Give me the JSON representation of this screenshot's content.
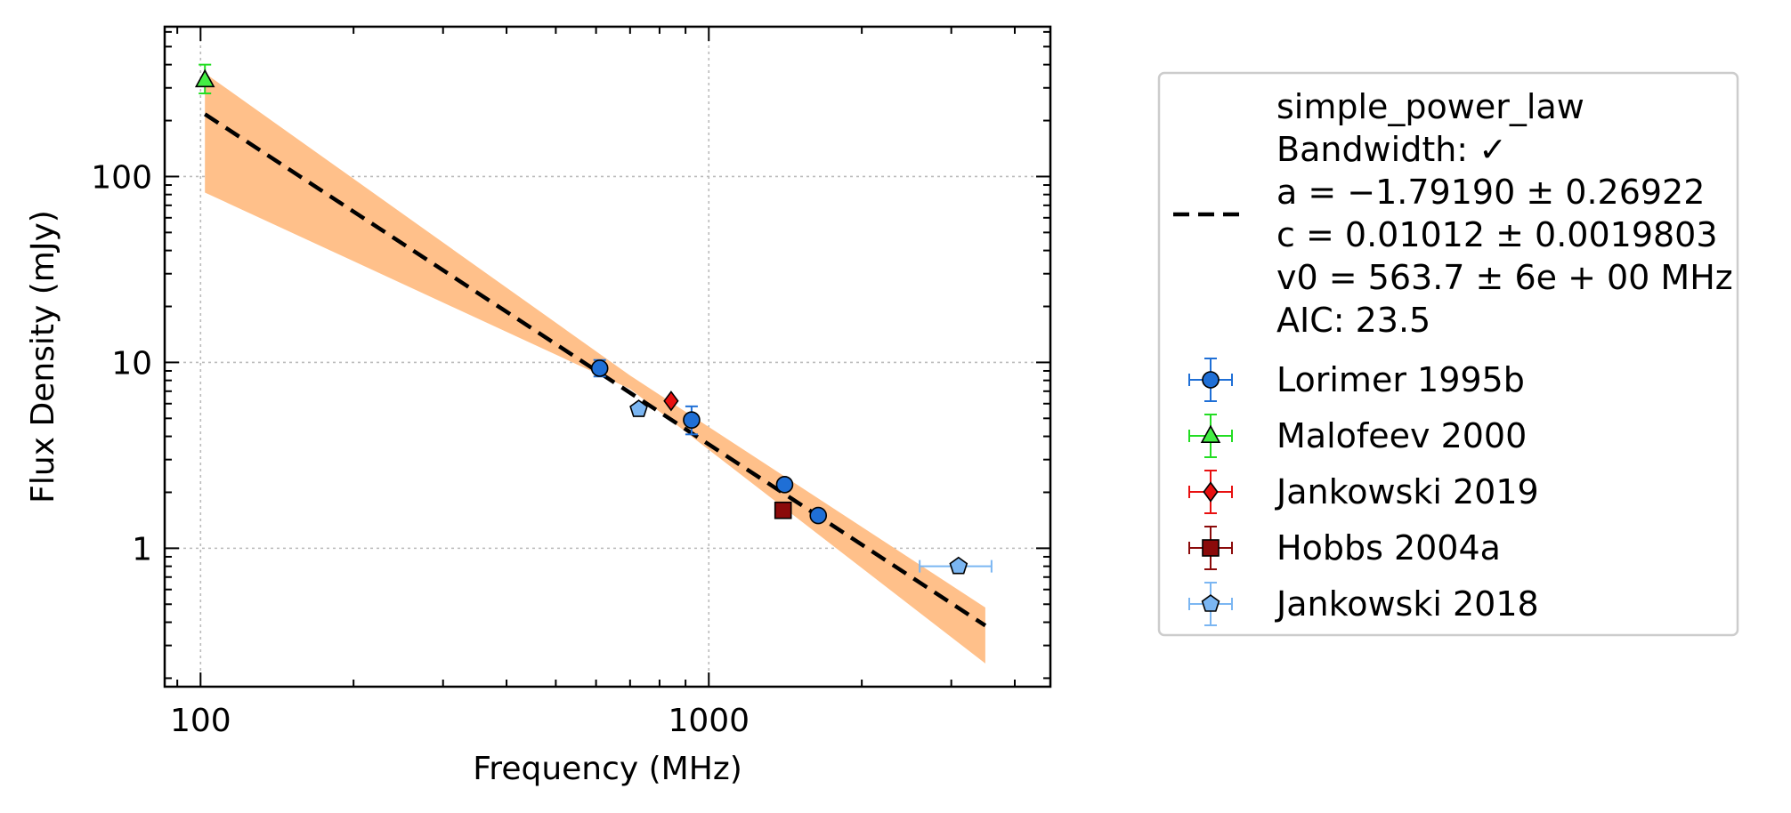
{
  "chart_data": {
    "type": "scatter",
    "xlabel": "Frequency (MHz)",
    "ylabel": "Flux Density (mJy)",
    "xscale": "log",
    "yscale": "log",
    "xlim": [
      85,
      4700
    ],
    "ylim": [
      0.18,
      640
    ],
    "grid": true,
    "legend_position": "right",
    "xticks": [
      {
        "value": 100,
        "label": "100"
      },
      {
        "value": 1000,
        "label": "1000"
      }
    ],
    "yticks": [
      {
        "value": 1,
        "label": "1"
      },
      {
        "value": 10,
        "label": "10"
      },
      {
        "value": 100,
        "label": "100"
      }
    ],
    "fit": {
      "name": "simple_power_law",
      "legend_lines": [
        "simple_power_law",
        "Bandwidth: ✓",
        "a = −1.79190 ± 0.26922",
        "c = 0.01012 ± 0.0019803",
        "v0 = 563.7 ± 6e + 00 MHz",
        "AIC: 23.5"
      ],
      "a": -1.7919,
      "c": 0.01012,
      "v0": 563.7,
      "x_range": [
        102,
        3500
      ],
      "band_upper": [
        [
          102,
          360
        ],
        [
          700,
          8.5
        ],
        [
          3500,
          0.48
        ]
      ],
      "band_lower": [
        [
          102,
          82
        ],
        [
          700,
          7.2
        ],
        [
          3500,
          0.24
        ]
      ],
      "color": "#000000",
      "band_color": "#ffc08a"
    },
    "series": [
      {
        "name": "Lorimer 1995b",
        "marker": "circle",
        "color": "#1f6fd6",
        "err_color": "#1f6fd6",
        "points": [
          {
            "x": 610,
            "y": 9.3,
            "ylo": 8.4,
            "yhi": 10.3
          },
          {
            "x": 925,
            "y": 4.9,
            "ylo": 4.1,
            "yhi": 5.8
          },
          {
            "x": 1410,
            "y": 2.2,
            "ylo": 2.05,
            "yhi": 2.35
          },
          {
            "x": 1642,
            "y": 1.5,
            "ylo": 1.42,
            "yhi": 1.58
          }
        ]
      },
      {
        "name": "Malofeev 2000",
        "marker": "triangle",
        "color": "#44ee44",
        "err_color": "#22dd22",
        "points": [
          {
            "x": 102,
            "y": 330,
            "ylo": 280,
            "yhi": 400
          }
        ]
      },
      {
        "name": "Jankowski 2019",
        "marker": "diamond",
        "color": "#e81010",
        "err_color": "#e81010",
        "points": [
          {
            "x": 843,
            "y": 6.2
          }
        ]
      },
      {
        "name": "Hobbs 2004a",
        "marker": "square",
        "color": "#8b0a0a",
        "err_color": "#8b0a0a",
        "points": [
          {
            "x": 1400,
            "y": 1.6
          }
        ]
      },
      {
        "name": "Jankowski 2018",
        "marker": "pentagon",
        "color": "#7bb6f2",
        "err_color": "#7bb6f2",
        "points": [
          {
            "x": 728,
            "y": 5.6
          },
          {
            "x": 3100,
            "y": 0.8,
            "xlo": 2600,
            "xhi": 3600
          }
        ]
      }
    ]
  }
}
